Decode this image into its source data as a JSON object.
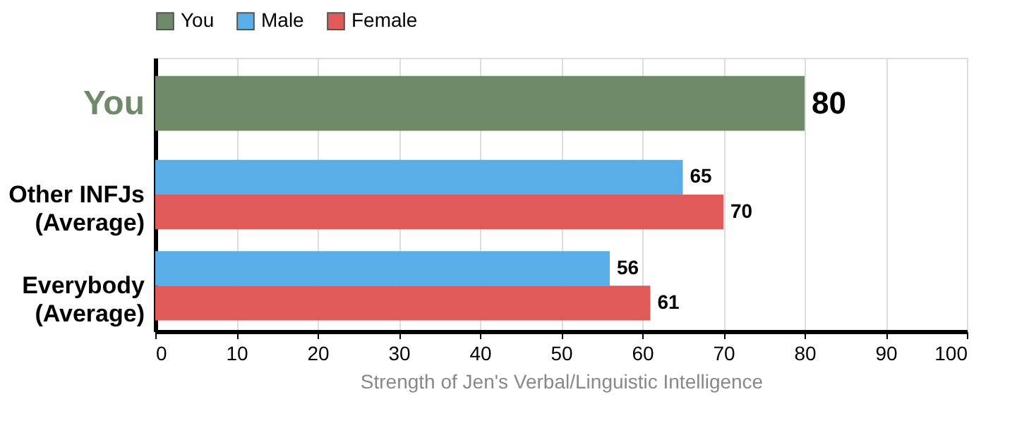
{
  "chart_data": {
    "type": "bar",
    "orientation": "horizontal",
    "categories": [
      "You",
      "Other INFJs\n(Average)",
      "Everybody\n(Average)"
    ],
    "series": [
      {
        "name": "You",
        "color": "#6e8a69",
        "values": [
          80,
          null,
          null
        ]
      },
      {
        "name": "Male",
        "color": "#5aaee8",
        "values": [
          null,
          65,
          56
        ]
      },
      {
        "name": "Female",
        "color": "#e05a5a",
        "values": [
          null,
          70,
          61
        ]
      }
    ],
    "xlabel": "Strength of Jen's Verbal/Linguistic Intelligence",
    "xlim": [
      0,
      100
    ],
    "xticks": [
      0,
      10,
      20,
      30,
      40,
      50,
      60,
      70,
      80,
      90,
      100
    ],
    "data_labels": true,
    "grid": "x",
    "legend": "top"
  }
}
